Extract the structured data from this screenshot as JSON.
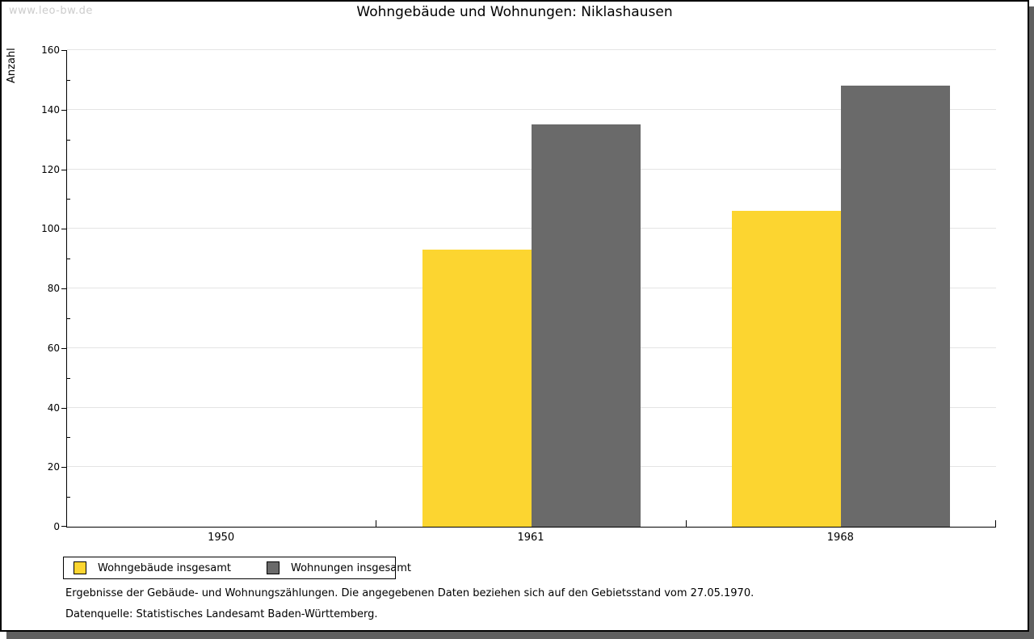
{
  "watermark": "www.leo-bw.de",
  "chart_data": {
    "type": "bar",
    "title": "Wohngebäude und Wohnungen: Niklashausen",
    "ylabel": "Anzahl",
    "xlabel": "",
    "categories": [
      "1950",
      "1961",
      "1968"
    ],
    "series": [
      {
        "name": "Wohngebäude insgesamt",
        "color": "#fcd530",
        "values": [
          null,
          93,
          106
        ]
      },
      {
        "name": "Wohnungen insgesamt",
        "color": "#6a6a6a",
        "values": [
          null,
          135,
          148
        ]
      }
    ],
    "ylim": [
      0,
      160
    ],
    "yticks": [
      0,
      20,
      40,
      60,
      80,
      100,
      120,
      140,
      160
    ],
    "ytick_minor_step": 10,
    "grid": "horizontal",
    "gridline_color": "#e4e4e4",
    "legend_position": "bottom-left"
  },
  "footnotes": [
    "Ergebnisse der Gebäude- und Wohnungszählungen. Die angegebenen Daten beziehen sich auf den Gebietsstand vom 27.05.1970.",
    "Datenquelle: Statistisches Landesamt Baden-Württemberg."
  ],
  "colors": {
    "frame_border": "#000000",
    "shadow": "#5f5f5f",
    "watermark": "#cccccc"
  }
}
